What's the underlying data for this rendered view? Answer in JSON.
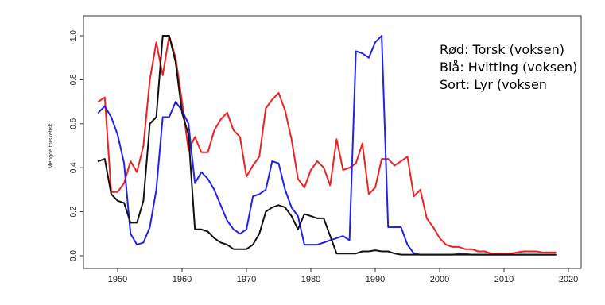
{
  "legend": {
    "line1": "Rød: Torsk (voksen)",
    "line2": "Blå: Hvitting (voksen)",
    "line3": "Sort: Lyr (voksen"
  },
  "chart_data": {
    "type": "line",
    "title": "",
    "xlabel": "",
    "ylabel": "Mengde torskefisk",
    "xlim": [
      1947,
      2018
    ],
    "ylim": [
      0.0,
      1.0
    ],
    "x_ticks": [
      1950,
      1960,
      1970,
      1980,
      1990,
      2000,
      2010,
      2020
    ],
    "y_ticks": [
      "0.0",
      "0.2",
      "0.4",
      "0.6",
      "0.8",
      "1.0"
    ],
    "grid": false,
    "legend_placement": "top-right",
    "series": [
      {
        "color": "#ee2222",
        "x": [
          1947,
          1948,
          1949,
          1950,
          1951,
          1952,
          1953,
          1954,
          1955,
          1956,
          1957,
          1958,
          1959,
          1960,
          1961,
          1962,
          1963,
          1964,
          1965,
          1966,
          1967,
          1968,
          1969,
          1970,
          1971,
          1972,
          1973,
          1974,
          1975,
          1976,
          1977,
          1978,
          1979,
          1980,
          1981,
          1982,
          1983,
          1984,
          1985,
          1986,
          1987,
          1988,
          1989,
          1990,
          1991,
          1992,
          1993,
          1994,
          1995,
          1996,
          1997,
          1998,
          1999,
          2000,
          2001,
          2002,
          2003,
          2004,
          2005,
          2006,
          2007,
          2008,
          2009,
          2010,
          2011,
          2012,
          2013,
          2014,
          2015,
          2016,
          2017,
          2018
        ],
        "values": [
          0.7,
          0.72,
          0.29,
          0.29,
          0.33,
          0.43,
          0.38,
          0.5,
          0.8,
          0.97,
          0.82,
          1.0,
          0.9,
          0.7,
          0.48,
          0.54,
          0.47,
          0.47,
          0.57,
          0.62,
          0.65,
          0.57,
          0.54,
          0.36,
          0.41,
          0.45,
          0.67,
          0.71,
          0.74,
          0.66,
          0.53,
          0.35,
          0.31,
          0.39,
          0.43,
          0.4,
          0.32,
          0.53,
          0.39,
          0.4,
          0.42,
          0.51,
          0.28,
          0.31,
          0.44,
          0.44,
          0.41,
          0.43,
          0.45,
          0.27,
          0.3,
          0.17,
          0.13,
          0.08,
          0.05,
          0.04,
          0.04,
          0.03,
          0.03,
          0.02,
          0.02,
          0.01,
          0.01,
          0.01,
          0.01,
          0.015,
          0.02,
          0.02,
          0.02,
          0.015,
          0.015,
          0.015
        ]
      },
      {
        "color": "#2222ee",
        "x": [
          1947,
          1948,
          1949,
          1950,
          1951,
          1952,
          1953,
          1954,
          1955,
          1956,
          1957,
          1958,
          1959,
          1960,
          1961,
          1962,
          1963,
          1964,
          1965,
          1966,
          1967,
          1968,
          1969,
          1970,
          1971,
          1972,
          1973,
          1974,
          1975,
          1976,
          1977,
          1978,
          1979,
          1980,
          1981,
          1982,
          1983,
          1984,
          1985,
          1986,
          1987,
          1988,
          1989,
          1990,
          1991,
          1992,
          1993,
          1994,
          1995,
          1996,
          1997,
          1998,
          1999,
          2000,
          2001,
          2002,
          2003,
          2004,
          2005,
          2006,
          2007,
          2008,
          2009,
          2010,
          2011,
          2012,
          2013,
          2014,
          2015,
          2016,
          2017,
          2018
        ],
        "values": [
          0.65,
          0.68,
          0.63,
          0.55,
          0.42,
          0.1,
          0.05,
          0.06,
          0.13,
          0.3,
          0.63,
          0.63,
          0.7,
          0.66,
          0.6,
          0.33,
          0.38,
          0.35,
          0.3,
          0.23,
          0.16,
          0.12,
          0.1,
          0.12,
          0.27,
          0.28,
          0.3,
          0.43,
          0.42,
          0.3,
          0.22,
          0.18,
          0.05,
          0.05,
          0.05,
          0.06,
          0.07,
          0.08,
          0.09,
          0.07,
          0.93,
          0.92,
          0.9,
          0.97,
          1.0,
          0.13,
          0.13,
          0.13,
          0.05,
          0.01,
          0.005,
          0.005,
          0.005,
          0.005,
          0.005,
          0.005,
          0.008,
          0.008,
          0.005,
          0.005,
          0.005,
          0.005,
          0.005,
          0.005,
          0.005,
          0.005,
          0.005,
          0.005,
          0.005,
          0.005,
          0.005,
          0.005
        ]
      },
      {
        "color": "#111111",
        "x": [
          1947,
          1948,
          1949,
          1950,
          1951,
          1952,
          1953,
          1954,
          1955,
          1956,
          1957,
          1958,
          1959,
          1960,
          1961,
          1962,
          1963,
          1964,
          1965,
          1966,
          1967,
          1968,
          1969,
          1970,
          1971,
          1972,
          1973,
          1974,
          1975,
          1976,
          1977,
          1978,
          1979,
          1980,
          1981,
          1982,
          1983,
          1984,
          1985,
          1986,
          1987,
          1988,
          1989,
          1990,
          1991,
          1992,
          1993,
          1994,
          1995,
          1996,
          1997,
          1998,
          1999,
          2000,
          2001,
          2002,
          2003,
          2004,
          2005,
          2006,
          2007,
          2008,
          2009,
          2010,
          2011,
          2012,
          2013,
          2014,
          2015,
          2016,
          2017,
          2018
        ],
        "values": [
          0.43,
          0.44,
          0.28,
          0.25,
          0.24,
          0.15,
          0.15,
          0.25,
          0.6,
          0.63,
          1.0,
          1.0,
          0.88,
          0.65,
          0.55,
          0.12,
          0.12,
          0.11,
          0.08,
          0.06,
          0.05,
          0.03,
          0.03,
          0.03,
          0.05,
          0.1,
          0.2,
          0.22,
          0.23,
          0.22,
          0.18,
          0.12,
          0.19,
          0.18,
          0.17,
          0.17,
          0.09,
          0.01,
          0.01,
          0.01,
          0.01,
          0.02,
          0.02,
          0.025,
          0.02,
          0.02,
          0.01,
          0.005,
          0.005,
          0.005,
          0.005,
          0.005,
          0.005,
          0.005,
          0.005,
          0.005,
          0.005,
          0.005,
          0.005,
          0.005,
          0.005,
          0.005,
          0.005,
          0.005,
          0.005,
          0.005,
          0.005,
          0.005,
          0.005,
          0.005,
          0.005,
          0.005
        ]
      }
    ]
  }
}
